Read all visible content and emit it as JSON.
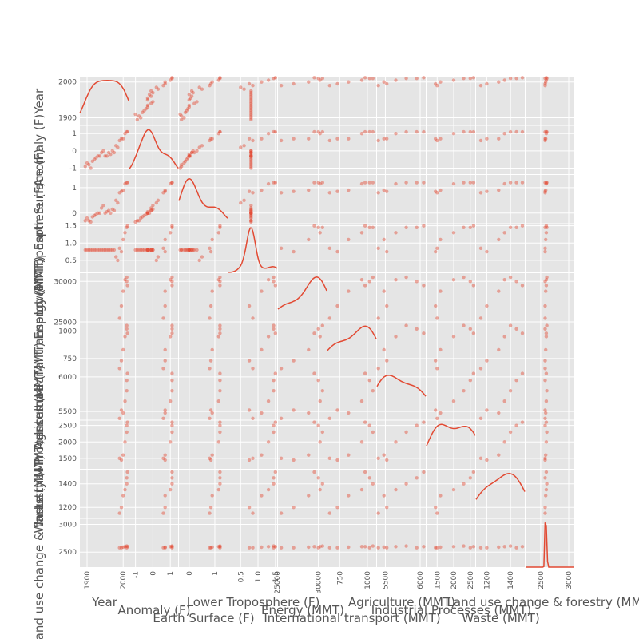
{
  "chart_data": {
    "type": "scatter-matrix",
    "title": "",
    "colors": {
      "marker": "#e24a33",
      "panel_background": "#e5e5e5",
      "grid": "#ffffff",
      "text": "#555555"
    },
    "grid": true,
    "diagonal": "kde",
    "variables": [
      {
        "name": "Year",
        "range": [
          1880,
          2015
        ],
        "ticks": [
          "1900",
          "2000"
        ]
      },
      {
        "name": "Anomaly (F)",
        "range": [
          -1.35,
          1.45
        ],
        "ticks": [
          "-1",
          "0",
          "1"
        ]
      },
      {
        "name": "Earth Surface (F)",
        "range": [
          -0.4,
          1.5
        ],
        "ticks": [
          "0",
          "1"
        ]
      },
      {
        "name": "Lower Troposphere (F)",
        "range": [
          0.15,
          1.55
        ],
        "ticks": [
          "0.5",
          "1.0",
          "1.5"
        ]
      },
      {
        "name": "Energy (MMT)",
        "range": [
          25100,
          31000
        ],
        "ticks": [
          "25000",
          "30000"
        ]
      },
      {
        "name": "International transport (MMT)",
        "range": [
          640,
          1080
        ],
        "ticks": [
          "750",
          "1000"
        ]
      },
      {
        "name": "Agriculture (MMT)",
        "range": [
          5380,
          6080
        ],
        "ticks": [
          "5500",
          "6000"
        ]
      },
      {
        "name": "Industrial Processes (MMT)",
        "range": [
          1180,
          2650
        ],
        "ticks": [
          "1500",
          "2000",
          "2500"
        ]
      },
      {
        "name": "Waste (MMT)",
        "range": [
          1110,
          1520
        ],
        "ticks": [
          "1200",
          "1400"
        ]
      },
      {
        "name": "Land use change & forestry (MMT)",
        "range": [
          2230,
          3100
        ],
        "ticks": [
          "2500",
          "3000"
        ]
      }
    ],
    "series": {
      "temperature_years": [
        1895,
        1900,
        1905,
        1910,
        1915,
        1920,
        1925,
        1930,
        1935,
        1940,
        1945,
        1950,
        1955,
        1960,
        1965,
        1970,
        1975,
        1980,
        1985,
        1990,
        1995,
        2000,
        2005,
        2010,
        2012
      ],
      "anomaly_f": [
        -0.9,
        -0.7,
        -0.8,
        -1.0,
        -0.6,
        -0.5,
        -0.4,
        -0.3,
        -0.3,
        -0.1,
        0.0,
        -0.3,
        -0.3,
        -0.1,
        -0.2,
        0.0,
        -0.1,
        0.3,
        0.2,
        0.6,
        0.7,
        0.7,
        1.0,
        1.1,
        1.1
      ],
      "earth_surface_f": [
        -0.3,
        -0.2,
        -0.3,
        -0.35,
        -0.15,
        -0.1,
        -0.05,
        0.0,
        0.0,
        0.2,
        0.3,
        0.0,
        0.05,
        0.1,
        0.0,
        0.15,
        0.1,
        0.5,
        0.4,
        0.8,
        0.85,
        0.9,
        1.15,
        1.2,
        1.2
      ],
      "lower_troposphere_f": [
        0.8,
        0.8,
        0.8,
        0.8,
        0.8,
        0.8,
        0.8,
        0.8,
        0.8,
        0.8,
        0.8,
        0.8,
        0.8,
        0.8,
        0.8,
        0.8,
        0.8,
        0.6,
        0.5,
        0.85,
        0.75,
        1.1,
        1.3,
        1.45,
        1.5
      ],
      "emission_years": [
        1990,
        1995,
        2000,
        2005,
        2008,
        2010,
        2012
      ],
      "energy_mmt": [
        25500,
        27000,
        28800,
        30200,
        30500,
        30000,
        29500
      ],
      "international_transport_mmt": [
        660,
        730,
        830,
        950,
        1050,
        1020,
        980
      ],
      "agriculture_mmt": [
        5400,
        5520,
        5480,
        5650,
        5800,
        5950,
        6050
      ],
      "industrial_processes_mmt": [
        1500,
        1450,
        1600,
        2000,
        2300,
        2500,
        2600
      ],
      "waste_mmt": [
        1150,
        1200,
        1300,
        1350,
        1400,
        1450,
        1500
      ],
      "land_use_change_forestry_mmt": [
        2580,
        2580,
        2590,
        2600,
        2610,
        2580,
        2600
      ]
    }
  }
}
